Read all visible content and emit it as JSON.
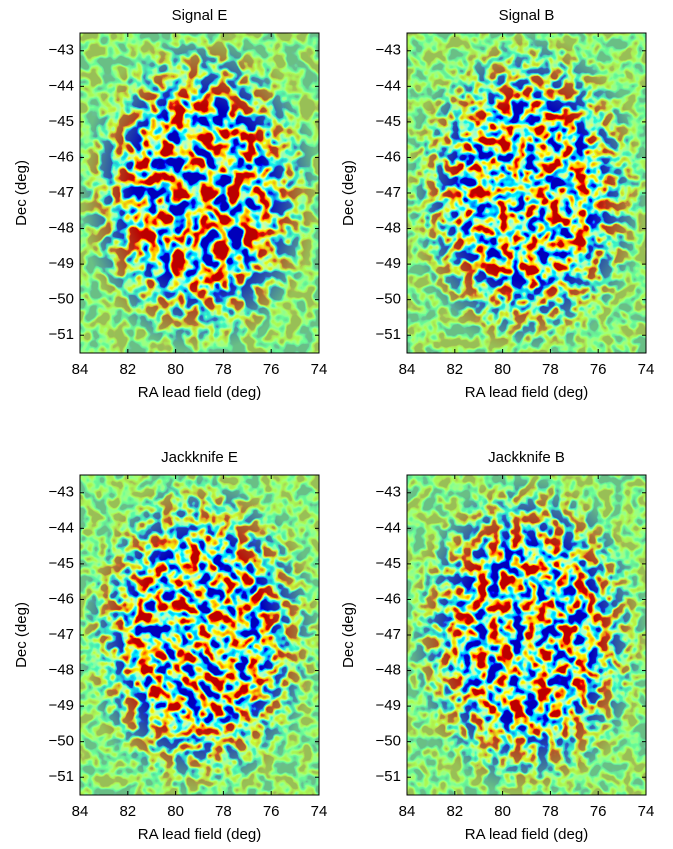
{
  "chart_data": [
    {
      "type": "heatmap",
      "title": "Signal E",
      "xlabel": "RA lead field (deg)",
      "ylabel": "Dec (deg)",
      "colormap": "jet",
      "xlim": [
        84,
        74
      ],
      "ylim": [
        -51.5,
        -42.5
      ],
      "xticks": [
        84,
        82,
        80,
        78,
        76,
        74
      ],
      "yticks": [
        {
          "value": -51,
          "label": "−51"
        },
        {
          "value": -50,
          "label": "−50"
        },
        {
          "value": -49,
          "label": "−49"
        },
        {
          "value": -48,
          "label": "−48"
        },
        {
          "value": -47,
          "label": "−47"
        },
        {
          "value": -46,
          "label": "−46"
        },
        {
          "value": -45,
          "label": "−45"
        },
        {
          "value": -44,
          "label": "−44"
        },
        {
          "value": -43,
          "label": "−43"
        }
      ]
    },
    {
      "type": "heatmap",
      "title": "Signal B",
      "xlabel": "RA lead field (deg)",
      "ylabel": "Dec (deg)",
      "colormap": "jet",
      "xlim": [
        84,
        74
      ],
      "ylim": [
        -51.5,
        -42.5
      ],
      "xticks": [
        84,
        82,
        80,
        78,
        76,
        74
      ],
      "yticks": [
        {
          "value": -51,
          "label": "−51"
        },
        {
          "value": -50,
          "label": "−50"
        },
        {
          "value": -49,
          "label": "−49"
        },
        {
          "value": -48,
          "label": "−48"
        },
        {
          "value": -47,
          "label": "−47"
        },
        {
          "value": -46,
          "label": "−46"
        },
        {
          "value": -45,
          "label": "−45"
        },
        {
          "value": -44,
          "label": "−44"
        },
        {
          "value": -43,
          "label": "−43"
        }
      ]
    },
    {
      "type": "heatmap",
      "title": "Jackknife E",
      "xlabel": "RA lead field (deg)",
      "ylabel": "Dec (deg)",
      "colormap": "jet",
      "xlim": [
        84,
        74
      ],
      "ylim": [
        -51.5,
        -42.5
      ],
      "xticks": [
        84,
        82,
        80,
        78,
        76,
        74
      ],
      "yticks": [
        {
          "value": -51,
          "label": "−51"
        },
        {
          "value": -50,
          "label": "−50"
        },
        {
          "value": -49,
          "label": "−49"
        },
        {
          "value": -48,
          "label": "−48"
        },
        {
          "value": -47,
          "label": "−47"
        },
        {
          "value": -46,
          "label": "−46"
        },
        {
          "value": -45,
          "label": "−45"
        },
        {
          "value": -44,
          "label": "−44"
        },
        {
          "value": -43,
          "label": "−43"
        }
      ]
    },
    {
      "type": "heatmap",
      "title": "Jackknife B",
      "xlabel": "RA lead field (deg)",
      "ylabel": "Dec (deg)",
      "colormap": "jet",
      "xlim": [
        84,
        74
      ],
      "ylim": [
        -51.5,
        -42.5
      ],
      "xticks": [
        84,
        82,
        80,
        78,
        76,
        74
      ],
      "yticks": [
        {
          "value": -51,
          "label": "−51"
        },
        {
          "value": -50,
          "label": "−50"
        },
        {
          "value": -49,
          "label": "−49"
        },
        {
          "value": -48,
          "label": "−48"
        },
        {
          "value": -47,
          "label": "−47"
        },
        {
          "value": -46,
          "label": "−46"
        },
        {
          "value": -45,
          "label": "−45"
        },
        {
          "value": -44,
          "label": "−44"
        },
        {
          "value": -43,
          "label": "−43"
        }
      ]
    }
  ]
}
